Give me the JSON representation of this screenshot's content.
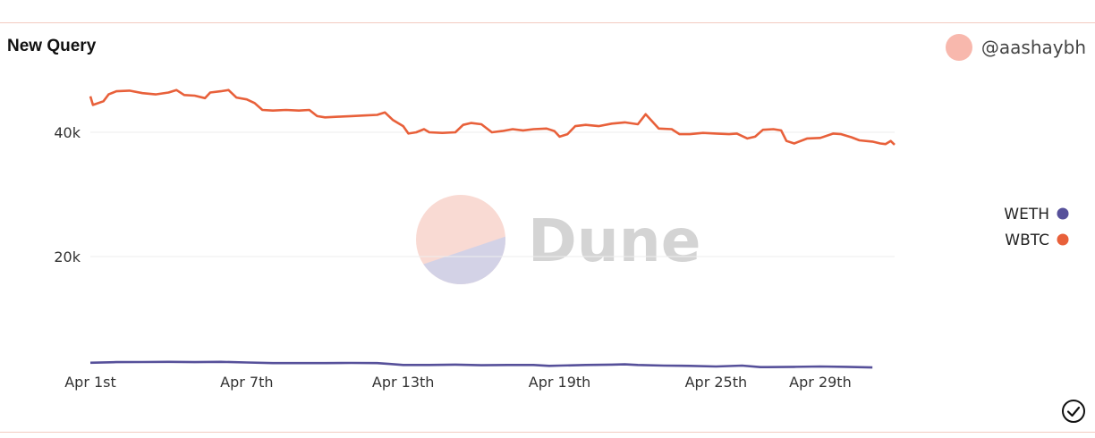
{
  "header": {
    "title": "New Query",
    "author": "@aashaybh",
    "avatar_color": "#f8b8ad"
  },
  "watermark": {
    "text": "Dune",
    "color_top": "#f9dad3",
    "color_bottom": "#d3d2e6"
  },
  "status_icon": "check-circle-icon",
  "chart_data": {
    "type": "line",
    "title": "New Query",
    "xlabel": "",
    "ylabel": "",
    "x_range": [
      "Apr 1st",
      "May 1st"
    ],
    "ylim": [
      0,
      50000
    ],
    "y_ticks": [
      {
        "value": 20000,
        "label": "20k"
      },
      {
        "value": 40000,
        "label": "40k"
      }
    ],
    "x_ticks": [
      {
        "day": 1,
        "label": "Apr 1st"
      },
      {
        "day": 7,
        "label": "Apr 7th"
      },
      {
        "day": 13,
        "label": "Apr 13th"
      },
      {
        "day": 19,
        "label": "Apr 19th"
      },
      {
        "day": 25,
        "label": "Apr 25th"
      },
      {
        "day": 29,
        "label": "Apr 29th"
      }
    ],
    "grid": "horizontal",
    "legend_position": "right",
    "series": [
      {
        "name": "WETH",
        "color": "#56509a",
        "points": [
          [
            1.0,
            2900
          ],
          [
            2.0,
            3000
          ],
          [
            3.0,
            3020
          ],
          [
            4.0,
            3050
          ],
          [
            5.0,
            3000
          ],
          [
            6.0,
            3050
          ],
          [
            7.0,
            2950
          ],
          [
            8.0,
            2850
          ],
          [
            9.0,
            2850
          ],
          [
            10.0,
            2850
          ],
          [
            11.0,
            2880
          ],
          [
            12.0,
            2850
          ],
          [
            12.5,
            2700
          ],
          [
            13.0,
            2550
          ],
          [
            14.0,
            2550
          ],
          [
            15.0,
            2600
          ],
          [
            16.0,
            2500
          ],
          [
            17.0,
            2550
          ],
          [
            18.0,
            2550
          ],
          [
            18.6,
            2400
          ],
          [
            19.0,
            2450
          ],
          [
            20.0,
            2550
          ],
          [
            21.0,
            2600
          ],
          [
            21.5,
            2650
          ],
          [
            22.0,
            2550
          ],
          [
            23.0,
            2450
          ],
          [
            24.0,
            2400
          ],
          [
            25.0,
            2300
          ],
          [
            26.0,
            2450
          ],
          [
            26.7,
            2200
          ],
          [
            27.0,
            2200
          ],
          [
            28.0,
            2250
          ],
          [
            29.0,
            2300
          ],
          [
            30.0,
            2250
          ],
          [
            31.0,
            2150
          ]
        ]
      },
      {
        "name": "WBTC",
        "color": "#e8603a",
        "points": [
          [
            1.0,
            45800
          ],
          [
            1.1,
            44400
          ],
          [
            1.5,
            45000
          ],
          [
            1.7,
            46100
          ],
          [
            2.0,
            46600
          ],
          [
            2.5,
            46700
          ],
          [
            3.0,
            46300
          ],
          [
            3.5,
            46100
          ],
          [
            4.0,
            46400
          ],
          [
            4.3,
            46800
          ],
          [
            4.6,
            46000
          ],
          [
            5.0,
            45900
          ],
          [
            5.4,
            45500
          ],
          [
            5.6,
            46400
          ],
          [
            6.0,
            46600
          ],
          [
            6.3,
            46800
          ],
          [
            6.6,
            45600
          ],
          [
            7.0,
            45300
          ],
          [
            7.3,
            44700
          ],
          [
            7.6,
            43600
          ],
          [
            8.0,
            43500
          ],
          [
            8.5,
            43600
          ],
          [
            9.0,
            43500
          ],
          [
            9.4,
            43600
          ],
          [
            9.7,
            42600
          ],
          [
            10.0,
            42400
          ],
          [
            10.5,
            42500
          ],
          [
            11.0,
            42600
          ],
          [
            11.5,
            42700
          ],
          [
            12.0,
            42800
          ],
          [
            12.3,
            43200
          ],
          [
            12.6,
            42000
          ],
          [
            13.0,
            41000
          ],
          [
            13.2,
            39800
          ],
          [
            13.5,
            40000
          ],
          [
            13.8,
            40500
          ],
          [
            14.0,
            40000
          ],
          [
            14.5,
            39900
          ],
          [
            15.0,
            40000
          ],
          [
            15.3,
            41200
          ],
          [
            15.6,
            41500
          ],
          [
            16.0,
            41300
          ],
          [
            16.4,
            40000
          ],
          [
            16.8,
            40200
          ],
          [
            17.2,
            40500
          ],
          [
            17.6,
            40300
          ],
          [
            18.0,
            40500
          ],
          [
            18.5,
            40600
          ],
          [
            18.8,
            40200
          ],
          [
            19.0,
            39300
          ],
          [
            19.3,
            39700
          ],
          [
            19.6,
            41000
          ],
          [
            20.0,
            41200
          ],
          [
            20.5,
            41000
          ],
          [
            21.0,
            41400
          ],
          [
            21.5,
            41600
          ],
          [
            22.0,
            41300
          ],
          [
            22.3,
            42900
          ],
          [
            22.5,
            42000
          ],
          [
            22.8,
            40600
          ],
          [
            23.3,
            40500
          ],
          [
            23.6,
            39700
          ],
          [
            24.0,
            39700
          ],
          [
            24.5,
            39900
          ],
          [
            25.0,
            39800
          ],
          [
            25.5,
            39700
          ],
          [
            25.8,
            39800
          ],
          [
            26.2,
            39000
          ],
          [
            26.5,
            39300
          ],
          [
            26.8,
            40400
          ],
          [
            27.2,
            40500
          ],
          [
            27.5,
            40300
          ],
          [
            27.7,
            38600
          ],
          [
            28.0,
            38200
          ],
          [
            28.5,
            39000
          ],
          [
            29.0,
            39100
          ],
          [
            29.5,
            39800
          ],
          [
            29.8,
            39700
          ],
          [
            30.2,
            39200
          ],
          [
            30.5,
            38700
          ],
          [
            31.0,
            38500
          ],
          [
            31.3,
            38200
          ],
          [
            31.5,
            38100
          ],
          [
            31.7,
            38600
          ],
          [
            31.85,
            38000
          ]
        ]
      }
    ]
  }
}
